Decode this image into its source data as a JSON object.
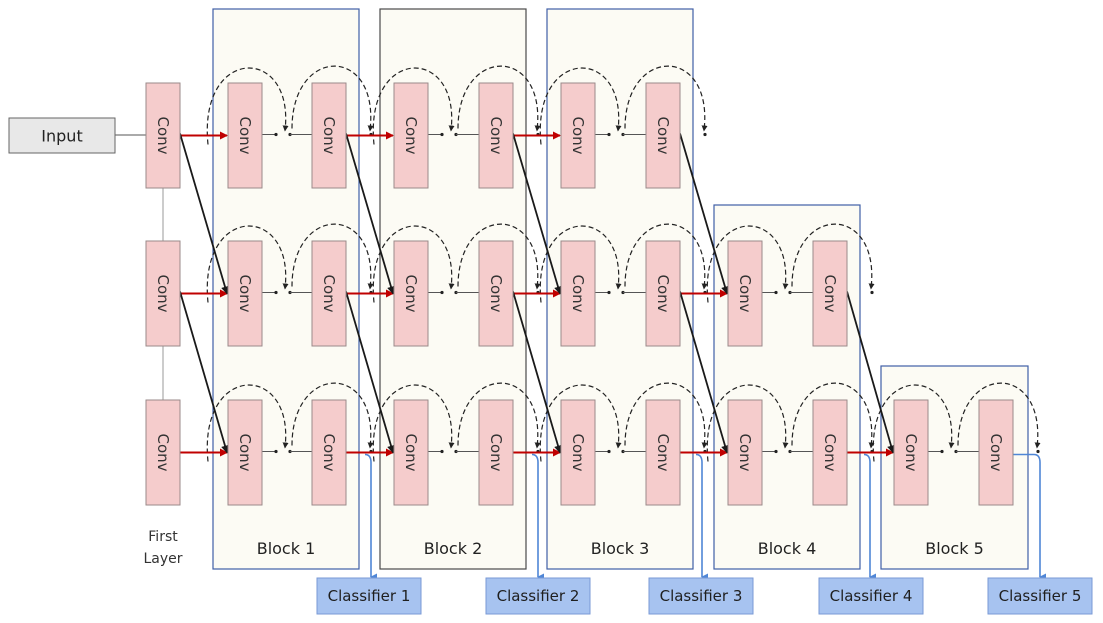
{
  "input_label": "Input",
  "conv_label": "Conv",
  "first_layer_label": [
    "First",
    "Layer"
  ],
  "blocks": [
    {
      "label": "Block 1"
    },
    {
      "label": "Block 2"
    },
    {
      "label": "Block 3"
    },
    {
      "label": "Block 4"
    },
    {
      "label": "Block 5"
    }
  ],
  "classifiers": [
    {
      "label": "Classifier 1"
    },
    {
      "label": "Classifier 2"
    },
    {
      "label": "Classifier 3"
    },
    {
      "label": "Classifier 4"
    },
    {
      "label": "Classifier 5"
    }
  ],
  "colors": {
    "conv_fill": "#f5cccc",
    "block_fill": "#fcfbf4",
    "classifier_fill": "#a7c3f0",
    "red_arrow": "#c00000",
    "blue_line": "#4f86d6"
  }
}
